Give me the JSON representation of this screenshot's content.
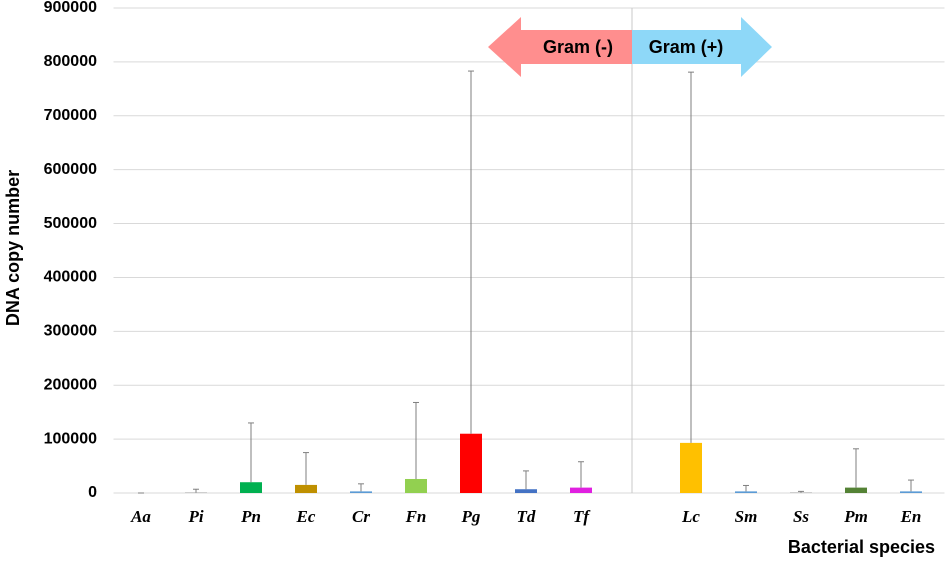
{
  "chart_data": {
    "type": "bar",
    "y_label": "DNA copy number",
    "x_label": "Bacterial species",
    "categories": [
      "Aa",
      "Pi",
      "Pn",
      "Ec",
      "Cr",
      "Fn",
      "Pg",
      "Td",
      "Tf",
      null,
      "Lc",
      "Sm",
      "Ss",
      "Pm",
      "En"
    ],
    "values": [
      0,
      1000,
      20000,
      15000,
      3000,
      26000,
      110000,
      7000,
      10000,
      null,
      93000,
      3000,
      1000,
      10000,
      3000
    ],
    "errors": [
      0,
      6000,
      110000,
      60000,
      14000,
      142000,
      673000,
      34000,
      48000,
      null,
      688000,
      11000,
      2000,
      72000,
      21000
    ],
    "colors": [
      "#7030a0",
      "#a5a5a5",
      "#00b050",
      "#bf9000",
      "#5b9bd5",
      "#92d050",
      "#ff0000",
      "#4472c4",
      "#e020e0",
      null,
      "#ffc000",
      "#5b9bd5",
      "#a5a5a5",
      "#548235",
      "#5b9bd5"
    ],
    "error_color": "#7f7f7f",
    "ylim": [
      0,
      900000
    ],
    "yticks": [
      0,
      100000,
      200000,
      300000,
      400000,
      500000,
      600000,
      700000,
      800000,
      900000
    ],
    "grid": true,
    "annotations": [
      "Gram (-)",
      "Gram (+)"
    ]
  }
}
